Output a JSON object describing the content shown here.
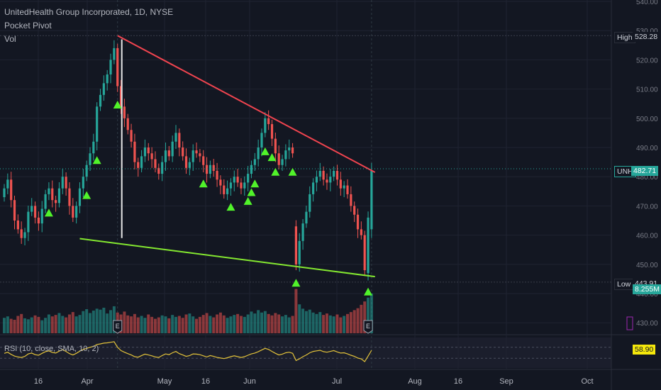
{
  "legend": {
    "title": "UnitedHealth Group Incorporated, 1D, NYSE",
    "indicator1": "Pocket Pivot",
    "indicator2": "Vol"
  },
  "rsi": {
    "label": "RSI (10, close, SMA, 10, 2)",
    "value": "58.90"
  },
  "tags": {
    "high_label": "High",
    "high_value": "528.28",
    "ticker": "UNH",
    "last_value": "482.71",
    "low_label": "Low",
    "low_value": "443.91",
    "volume_value": "8.255M"
  },
  "colors": {
    "background": "#131722",
    "up": "#26a69a",
    "down": "#ef5350",
    "resistance": "#f0444f",
    "support": "#84e830",
    "signal": "#51f32a",
    "rsi": "#e2c23a",
    "grid": "#1f2331",
    "text": "#b2b5be"
  },
  "chart_data": {
    "type": "candlestick",
    "title": "UnitedHealth Group Incorporated, 1D, NYSE",
    "ylim": [
      425,
      540
    ],
    "y_ticks": [
      "430.00",
      "440.00",
      "450.00",
      "460.00",
      "470.00",
      "480.00",
      "490.00",
      "500.00",
      "510.00",
      "520.00",
      "530.00",
      "540.00"
    ],
    "x_ticks": [
      "16",
      "Apr",
      "May",
      "16",
      "Jun",
      "Jul",
      "Aug",
      "16",
      "Sep",
      "Oct"
    ],
    "closes": [
      476,
      479,
      472,
      465,
      462,
      459,
      461,
      468,
      470,
      466,
      464,
      469,
      474,
      476,
      472,
      471,
      476,
      480,
      476,
      470,
      466,
      470,
      476,
      480,
      484,
      488,
      492,
      504,
      508,
      512,
      515,
      520,
      524,
      511,
      504,
      500,
      496,
      492,
      485,
      483,
      487,
      490,
      488,
      486,
      483,
      481,
      485,
      489,
      487,
      492,
      495,
      490,
      487,
      483,
      485,
      489,
      488,
      487,
      484,
      481,
      484,
      482,
      479,
      477,
      474,
      476,
      478,
      480,
      478,
      476,
      478,
      481,
      484,
      486,
      490,
      495,
      500,
      498,
      493,
      488,
      484,
      486,
      489,
      490,
      488,
      450,
      458,
      464,
      468,
      474,
      478,
      480,
      482,
      479,
      478,
      480,
      482,
      479,
      476,
      477,
      474,
      470,
      467,
      462,
      460,
      448,
      466,
      482
    ],
    "volume_millions": [
      3.2,
      3.5,
      3.0,
      2.8,
      3.6,
      4.0,
      3.1,
      2.9,
      3.3,
      3.7,
      3.4,
      2.7,
      3.2,
      3.9,
      3.5,
      3.8,
      4.2,
      3.6,
      3.3,
      3.9,
      4.4,
      3.5,
      3.8,
      4.6,
      5.0,
      4.2,
      4.7,
      5.1,
      4.9,
      5.3,
      4.1,
      4.8,
      5.6,
      4.3,
      3.9,
      4.5,
      3.7,
      3.5,
      4.0,
      3.3,
      3.6,
      3.2,
      3.9,
      3.4,
      3.0,
      3.3,
      3.7,
      3.5,
      3.1,
      3.8,
      3.4,
      3.6,
      3.2,
      3.9,
      4.1,
      3.5,
      3.0,
      3.4,
      3.8,
      4.2,
      3.6,
      3.3,
      3.9,
      4.3,
      3.7,
      3.2,
      3.5,
      3.8,
      4.0,
      3.6,
      3.4,
      3.9,
      4.5,
      4.1,
      4.8,
      4.3,
      4.6,
      4.0,
      3.7,
      4.2,
      3.9,
      3.5,
      3.8,
      3.3,
      3.6,
      9.2,
      6.0,
      5.1,
      4.6,
      4.9,
      4.3,
      4.0,
      4.4,
      3.8,
      4.1,
      3.7,
      3.5,
      3.9,
      3.3,
      3.6,
      4.0,
      4.4,
      4.8,
      5.2,
      5.9,
      6.6,
      7.4,
      8.255
    ],
    "pocket_pivot_days": [
      13,
      24,
      27,
      33,
      58,
      66,
      71,
      72,
      73,
      76,
      78,
      79,
      84,
      85,
      106
    ],
    "earnings_days": [
      33,
      106
    ],
    "trendlines": [
      {
        "name": "resistance",
        "from": [
          33,
          528.28
        ],
        "to": [
          108,
          481.5
        ]
      },
      {
        "name": "support",
        "from": [
          22,
          458.8
        ],
        "to": [
          108,
          445.8
        ]
      }
    ],
    "high": 528.28,
    "low": 443.91,
    "last": 482.71,
    "volume_last": "8.255M",
    "rsi": {
      "ylim": [
        0,
        100
      ],
      "upper": 70,
      "lower": 30,
      "last": 58.9,
      "values": [
        48,
        52,
        44,
        38,
        35,
        33,
        37,
        46,
        49,
        43,
        41,
        48,
        54,
        57,
        51,
        49,
        56,
        61,
        55,
        47,
        42,
        48,
        56,
        62,
        66,
        70,
        73,
        80,
        82,
        85,
        86,
        88,
        90,
        70,
        58,
        52,
        47,
        42,
        36,
        34,
        40,
        45,
        42,
        39,
        35,
        33,
        40,
        46,
        43,
        50,
        55,
        47,
        42,
        37,
        40,
        46,
        45,
        43,
        39,
        35,
        40,
        37,
        33,
        31,
        29,
        32,
        36,
        39,
        36,
        33,
        36,
        41,
        46,
        49,
        54,
        60,
        66,
        62,
        55,
        48,
        42,
        45,
        50,
        52,
        48,
        22,
        28,
        36,
        42,
        50,
        55,
        57,
        59,
        54,
        52,
        55,
        58,
        53,
        49,
        50,
        46,
        41,
        37,
        31,
        28,
        18,
        38,
        58.9
      ]
    }
  }
}
